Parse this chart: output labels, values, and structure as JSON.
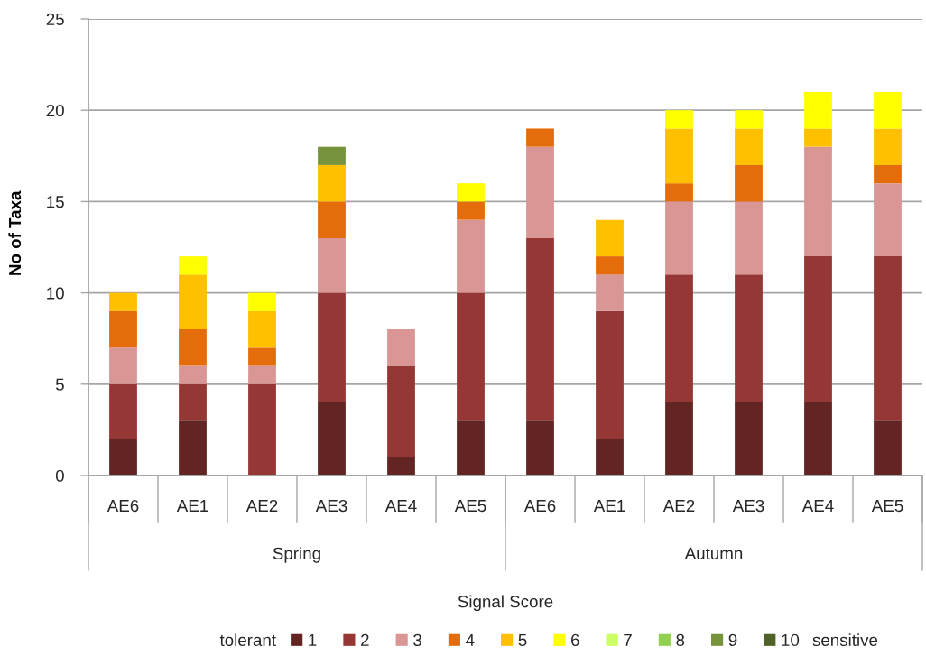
{
  "chart_data": {
    "type": "bar",
    "stacked": true,
    "categories": [
      "AE6",
      "AE1",
      "AE2",
      "AE3",
      "AE4",
      "AE5",
      "AE6",
      "AE1",
      "AE2",
      "AE3",
      "AE4",
      "AE5"
    ],
    "series": [
      {
        "name": "1",
        "color": "#632523",
        "values": [
          2,
          3,
          0,
          4,
          1,
          3,
          3,
          2,
          4,
          4,
          4,
          3
        ]
      },
      {
        "name": "2",
        "color": "#953735",
        "values": [
          3,
          2,
          5,
          6,
          5,
          7,
          10,
          7,
          7,
          7,
          8,
          9
        ]
      },
      {
        "name": "3",
        "color": "#d99694",
        "values": [
          2,
          1,
          1,
          3,
          2,
          4,
          5,
          2,
          4,
          4,
          6,
          4
        ]
      },
      {
        "name": "4",
        "color": "#e46c0a",
        "values": [
          2,
          2,
          1,
          2,
          0,
          1,
          1,
          1,
          1,
          2,
          0,
          1
        ]
      },
      {
        "name": "5",
        "color": "#ffc000",
        "values": [
          1,
          3,
          2,
          2,
          0,
          0,
          0,
          2,
          3,
          2,
          1,
          2
        ]
      },
      {
        "name": "6",
        "color": "#ffff00",
        "values": [
          0,
          1,
          1,
          0,
          0,
          1,
          0,
          0,
          1,
          1,
          2,
          2
        ]
      },
      {
        "name": "7",
        "color": "#ccff66",
        "values": [
          0,
          0,
          0,
          0,
          0,
          0,
          0,
          0,
          0,
          0,
          0,
          0
        ]
      },
      {
        "name": "8",
        "color": "#92d050",
        "values": [
          0,
          0,
          0,
          0,
          0,
          0,
          0,
          0,
          0,
          0,
          0,
          0
        ]
      },
      {
        "name": "9",
        "color": "#77933c",
        "values": [
          0,
          0,
          0,
          1,
          0,
          0,
          0,
          0,
          0,
          0,
          0,
          0
        ]
      },
      {
        "name": "10",
        "color": "#4f6228",
        "values": [
          0,
          0,
          0,
          0,
          0,
          0,
          0,
          0,
          0,
          0,
          0,
          0
        ]
      }
    ],
    "ylabel": "No of Taxa",
    "xlabel": "Signal Score",
    "ylim": [
      0,
      25
    ],
    "yticks": [
      0,
      5,
      10,
      15,
      20,
      25
    ],
    "grid": "y",
    "legend": "bottom",
    "annotations": [
      "Spring",
      "Autumn",
      "tolerant",
      "sensitive"
    ]
  }
}
